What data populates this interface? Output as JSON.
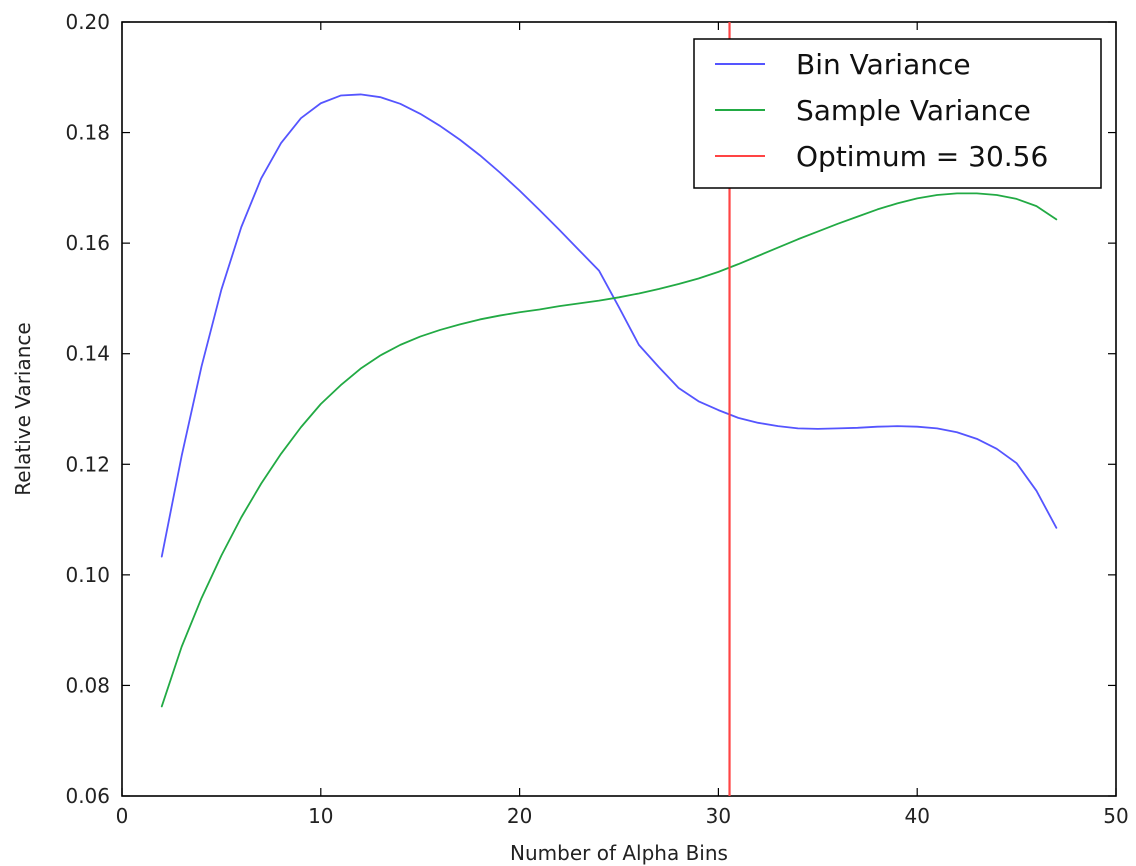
{
  "chart_data": {
    "type": "line",
    "title": "",
    "xlabel": "Number of Alpha Bins",
    "ylabel": "Relative Variance",
    "xlim": [
      0,
      50
    ],
    "ylim": [
      0.06,
      0.2
    ],
    "x_ticks": [
      0,
      10,
      20,
      30,
      40,
      50
    ],
    "y_ticks": [
      0.06,
      0.08,
      0.1,
      0.12,
      0.14,
      0.16,
      0.18,
      0.2
    ],
    "x_tick_labels": [
      "0",
      "10",
      "20",
      "30",
      "40",
      "50"
    ],
    "y_tick_labels": [
      "0.06",
      "0.08",
      "0.10",
      "0.12",
      "0.14",
      "0.16",
      "0.18",
      "0.20"
    ],
    "grid": false,
    "legend_position": "top-right",
    "series": [
      {
        "name": "Bin Variance",
        "color": "#5555ff",
        "x": [
          2,
          3,
          4,
          5,
          6,
          7,
          8,
          9,
          10,
          11,
          12,
          13,
          14,
          15,
          16,
          17,
          18,
          19,
          20,
          21,
          22,
          23,
          24,
          25,
          26,
          27,
          28,
          29,
          30,
          31,
          32,
          33,
          34,
          35,
          36,
          37,
          38,
          39,
          40,
          41,
          42,
          43,
          44,
          45,
          46,
          47
        ],
        "values": [
          0.1033,
          0.1215,
          0.1377,
          0.1516,
          0.1629,
          0.1717,
          0.1781,
          0.1826,
          0.1853,
          0.1867,
          0.1869,
          0.1864,
          0.1852,
          0.1834,
          0.1812,
          0.1787,
          0.1759,
          0.1728,
          0.1695,
          0.166,
          0.1624,
          0.1587,
          0.155,
          0.1484,
          0.1416,
          0.1376,
          0.1338,
          0.1314,
          0.1298,
          0.1284,
          0.1275,
          0.1269,
          0.1265,
          0.1264,
          0.1265,
          0.1266,
          0.1268,
          0.1269,
          0.1268,
          0.1265,
          0.1258,
          0.1246,
          0.1228,
          0.1202,
          0.1152,
          0.1085
        ]
      },
      {
        "name": "Sample Variance",
        "color": "#22aa44",
        "x": [
          2,
          3,
          4,
          5,
          6,
          7,
          8,
          9,
          10,
          11,
          12,
          13,
          14,
          15,
          16,
          17,
          18,
          19,
          20,
          21,
          22,
          23,
          24,
          25,
          26,
          27,
          28,
          29,
          30,
          31,
          32,
          33,
          34,
          35,
          36,
          37,
          38,
          39,
          40,
          41,
          42,
          43,
          44,
          45,
          46,
          47
        ],
        "values": [
          0.0762,
          0.087,
          0.0958,
          0.1035,
          0.1104,
          0.1165,
          0.1219,
          0.1267,
          0.1309,
          0.1343,
          0.1373,
          0.1397,
          0.1416,
          0.1431,
          0.1443,
          0.1453,
          0.1462,
          0.1469,
          0.1475,
          0.148,
          0.1486,
          0.1491,
          0.1496,
          0.1502,
          0.1509,
          0.1517,
          0.1526,
          0.1536,
          0.1548,
          0.1562,
          0.1577,
          0.1592,
          0.1607,
          0.1621,
          0.1635,
          0.1648,
          0.1661,
          0.1672,
          0.1681,
          0.1687,
          0.169,
          0.169,
          0.1687,
          0.168,
          0.1667,
          0.1643
        ]
      }
    ],
    "vertical_lines": [
      {
        "name": "Optimum = 30.56",
        "x": 30.56,
        "color": "#ff4444"
      }
    ]
  }
}
